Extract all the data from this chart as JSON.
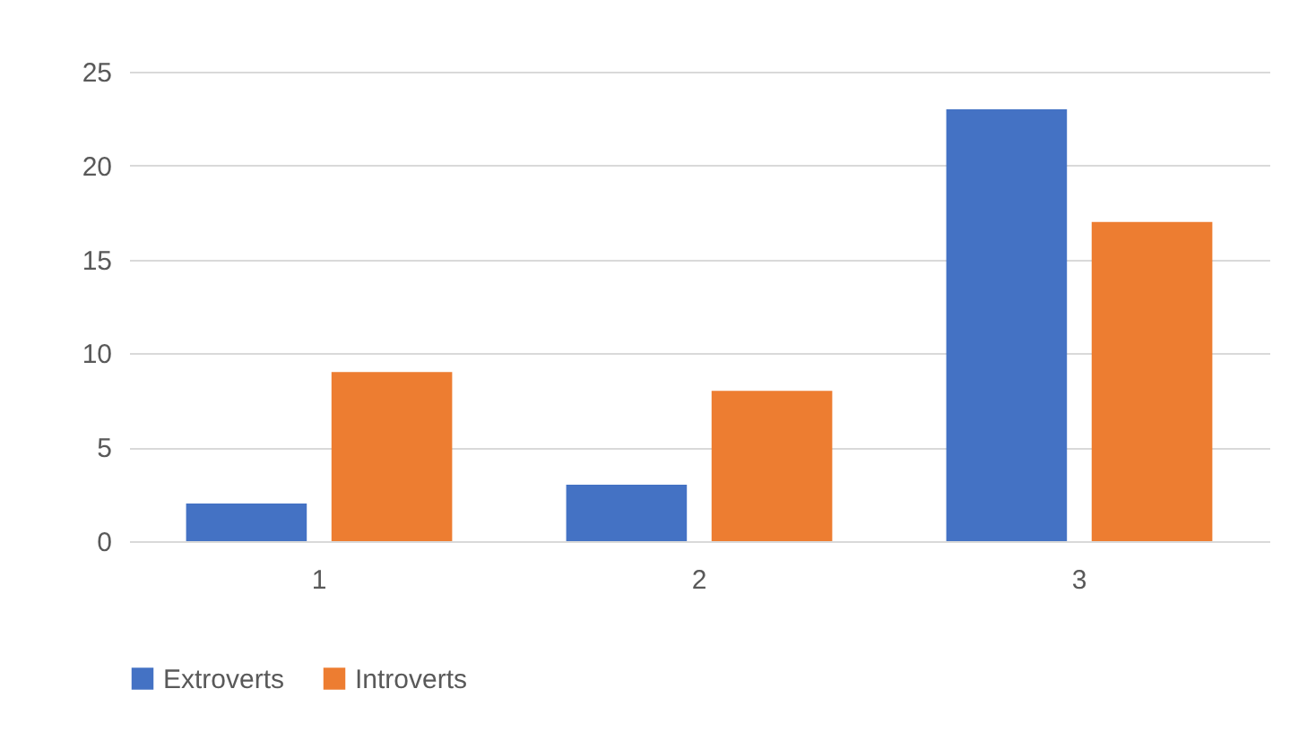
{
  "chart_data": {
    "type": "bar",
    "categories": [
      "1",
      "2",
      "3"
    ],
    "series": [
      {
        "name": "Extroverts",
        "color": "#4472c4",
        "values": [
          2,
          3,
          23
        ]
      },
      {
        "name": "Introverts",
        "color": "#ed7d31",
        "values": [
          9,
          8,
          17
        ]
      }
    ],
    "ylim": [
      0,
      25
    ],
    "yticks": [
      0,
      5,
      10,
      15,
      20,
      25
    ],
    "grid": "y",
    "legend": "bottom"
  }
}
